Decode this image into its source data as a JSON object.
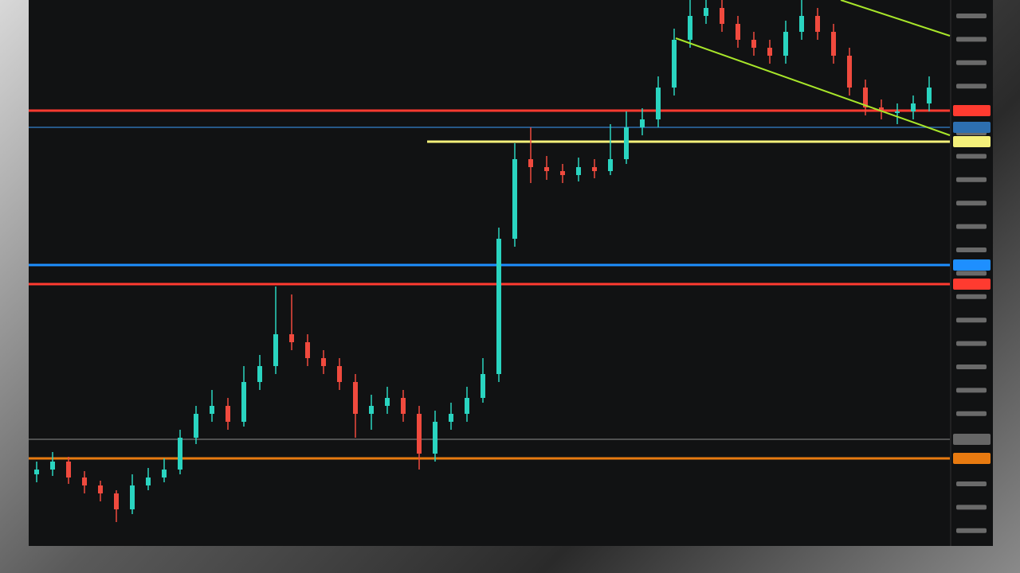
{
  "chart_data": {
    "type": "candlestick",
    "ylim": [
      0,
      686
    ],
    "up_color": "#2ad4c0",
    "down_color": "#f04a3e",
    "open": [
      90,
      96,
      106,
      86,
      76,
      66,
      46,
      76,
      86,
      96,
      136,
      166,
      176,
      156,
      206,
      226,
      266,
      256,
      236,
      226,
      206,
      166,
      176,
      186,
      166,
      116,
      156,
      166,
      186,
      216,
      386,
      486,
      476,
      471,
      466,
      476,
      471,
      486,
      526,
      536,
      576,
      636,
      666,
      676,
      656,
      636,
      626,
      616,
      646,
      666,
      646,
      616,
      576,
      551,
      546,
      546,
      556
    ],
    "high": [
      106,
      118,
      112,
      94,
      82,
      70,
      90,
      98,
      110,
      146,
      176,
      196,
      186,
      226,
      240,
      326,
      316,
      266,
      246,
      236,
      216,
      190,
      200,
      196,
      176,
      170,
      180,
      200,
      236,
      400,
      506,
      526,
      490,
      480,
      488,
      486,
      530,
      546,
      550,
      590,
      650,
      686,
      686,
      686,
      666,
      646,
      636,
      660,
      686,
      676,
      656,
      626,
      586,
      561,
      556,
      566,
      590
    ],
    "low": [
      80,
      88,
      78,
      66,
      56,
      30,
      40,
      70,
      80,
      90,
      128,
      156,
      146,
      150,
      196,
      216,
      246,
      226,
      216,
      196,
      136,
      146,
      166,
      156,
      96,
      106,
      146,
      156,
      180,
      206,
      376,
      456,
      460,
      456,
      458,
      462,
      466,
      480,
      516,
      526,
      566,
      626,
      656,
      646,
      626,
      616,
      606,
      606,
      636,
      636,
      606,
      566,
      541,
      536,
      530,
      536,
      546
    ],
    "close": [
      96,
      106,
      86,
      76,
      66,
      46,
      76,
      86,
      96,
      136,
      166,
      176,
      156,
      206,
      226,
      266,
      256,
      236,
      226,
      206,
      166,
      176,
      186,
      166,
      116,
      156,
      166,
      186,
      216,
      386,
      486,
      476,
      471,
      466,
      476,
      471,
      486,
      526,
      536,
      576,
      636,
      666,
      676,
      656,
      636,
      626,
      616,
      646,
      666,
      646,
      616,
      576,
      551,
      546,
      546,
      556,
      576
    ],
    "levels": [
      {
        "value": 547,
        "color": "#ff3b30"
      },
      {
        "value": 526,
        "color": "#2d6fb0"
      },
      {
        "value": 508,
        "color": "#f4f07a"
      },
      {
        "value": 353,
        "color": "#1e8fff"
      },
      {
        "value": 329,
        "color": "#ff3b30"
      },
      {
        "value": 134,
        "color": "#666666"
      },
      {
        "value": 110,
        "color": "#e87a10"
      }
    ]
  }
}
